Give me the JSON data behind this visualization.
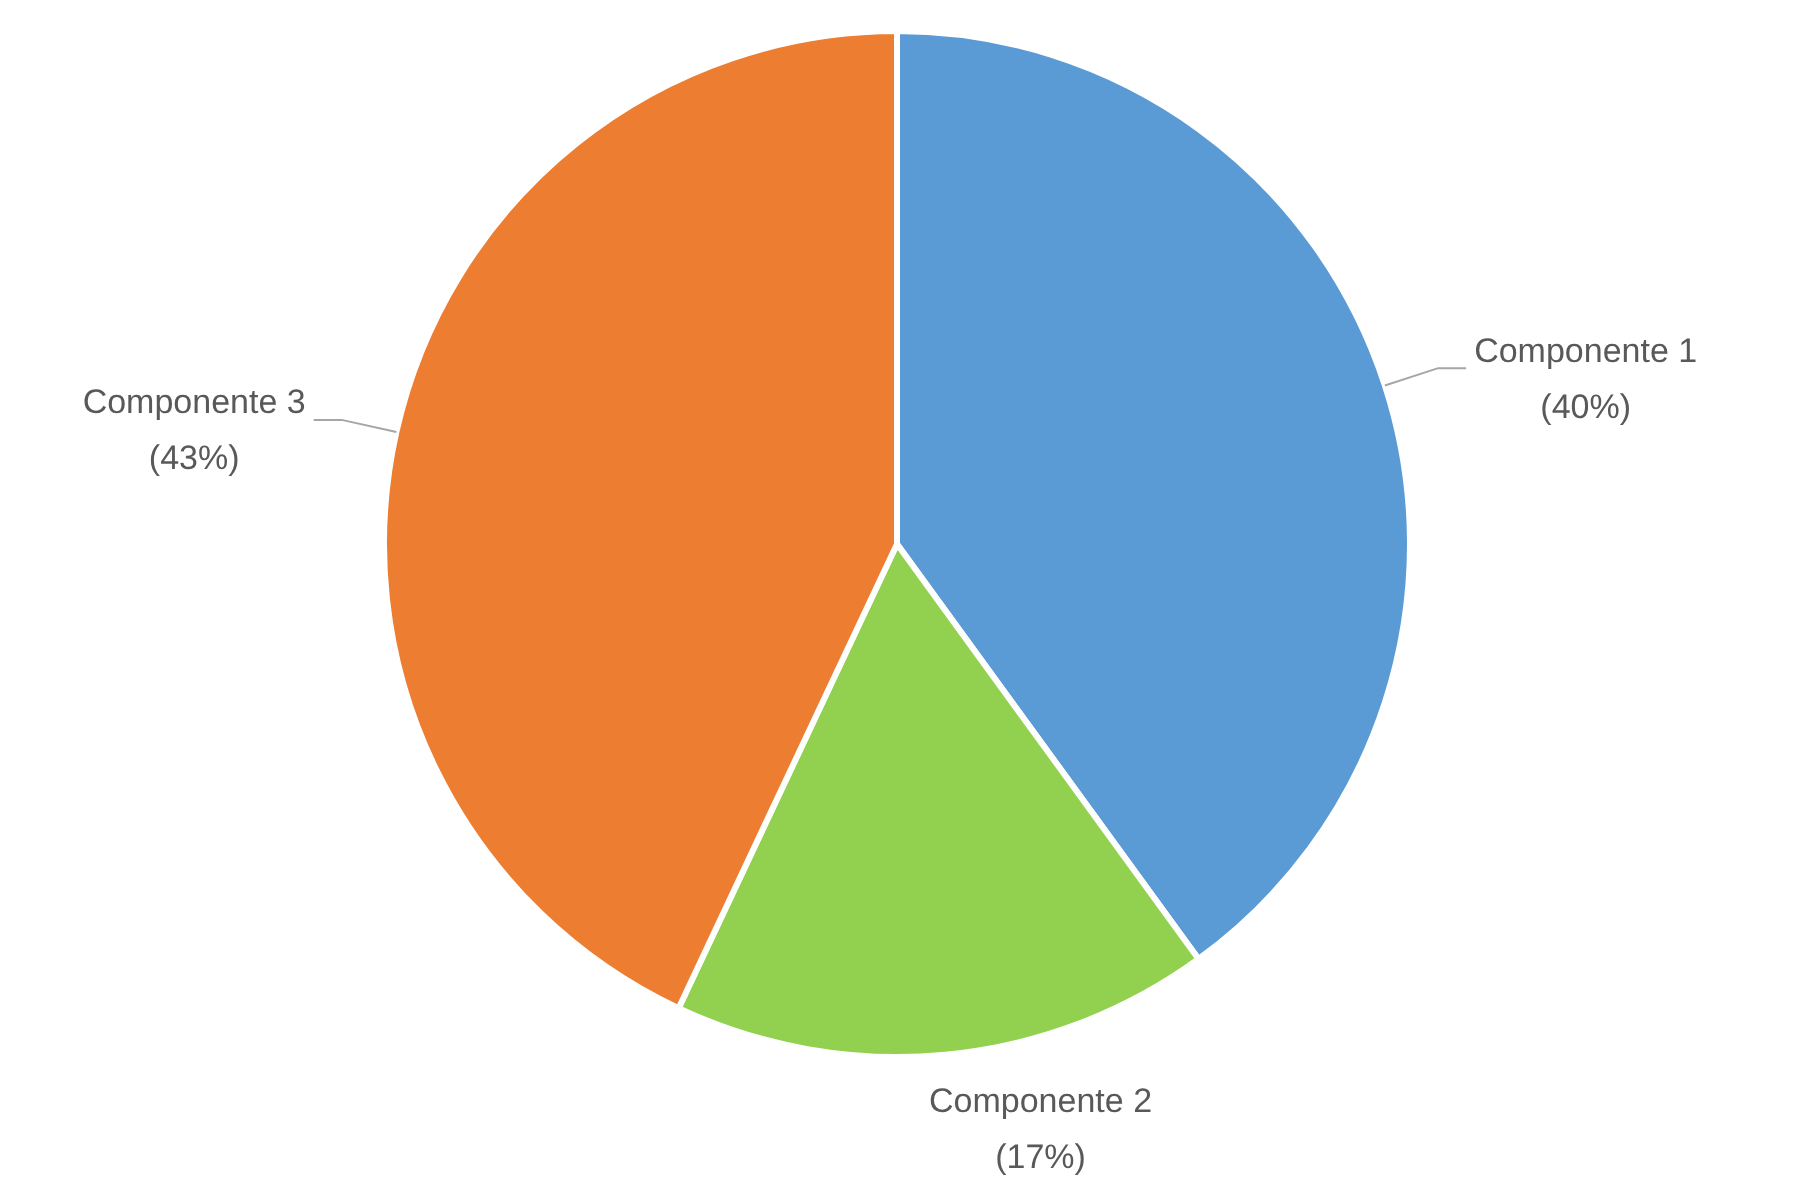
{
  "chart_data": {
    "type": "pie",
    "categories": [
      "Componente 1",
      "Componente 2",
      "Componente 3"
    ],
    "values": [
      40,
      17,
      43
    ],
    "colors": [
      "#5b9bd5",
      "#92d050",
      "#ed7d31"
    ],
    "value_labels": [
      "(40%)",
      "(17%)",
      "(43%)"
    ],
    "legend": false
  }
}
